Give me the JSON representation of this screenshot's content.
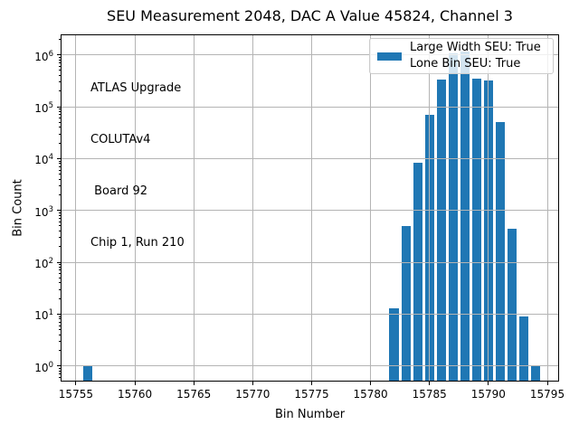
{
  "chart_data": {
    "type": "bar",
    "title": "SEU Measurement 2048, DAC A Value 45824, Channel 3",
    "xlabel": "Bin Number",
    "ylabel": "Bin Count",
    "yscale": "log",
    "x": [
      15756,
      15782,
      15783,
      15784,
      15785,
      15786,
      15787,
      15788,
      15789,
      15790,
      15791,
      15792,
      15793,
      15794
    ],
    "values": [
      1,
      13,
      500,
      8300,
      70000,
      330000,
      1050000,
      1150000,
      350000,
      320000,
      50000,
      440,
      9,
      1
    ],
    "bar_color": "#1f77b4",
    "bar_width_bins": 0.8,
    "grid": true,
    "grid_color": "#b4b4b4",
    "xlim": [
      15753.7,
      15796.0
    ],
    "ylim": [
      0.5,
      2480000
    ],
    "xticks": [
      15755,
      15760,
      15765,
      15770,
      15775,
      15780,
      15785,
      15790,
      15795
    ],
    "ytick_exponents": [
      0,
      1,
      2,
      3,
      4,
      5,
      6
    ],
    "legend": {
      "position": "upper right",
      "swatch_color": "#1f77b4",
      "label_lines": [
        "Large Width SEU: True",
        "Lone Bin SEU: True"
      ]
    },
    "annotation": {
      "lines": [
        "ATLAS Upgrade",
        "COLUTAv4",
        " Board 92",
        "Chip 1, Run 210"
      ]
    }
  }
}
